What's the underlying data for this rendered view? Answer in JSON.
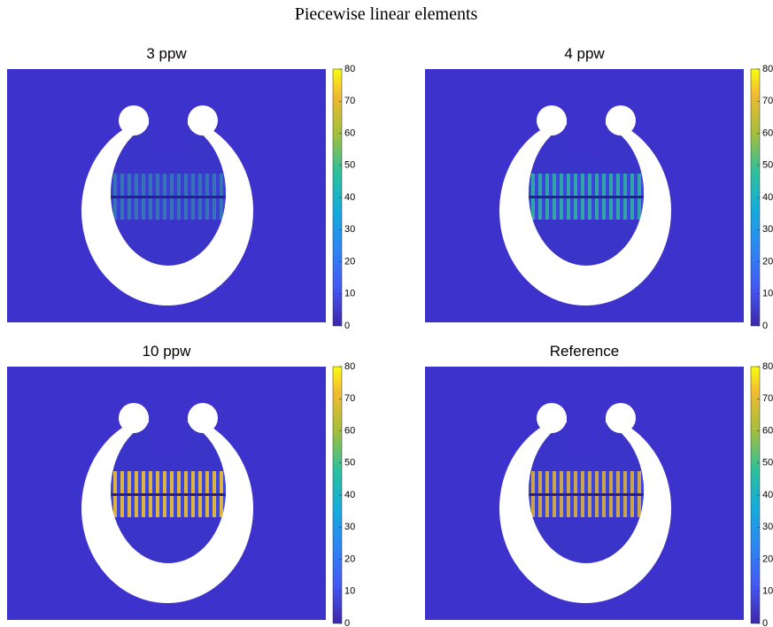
{
  "title": "Piecewise linear elements",
  "chart_data": [
    {
      "type": "heatmap",
      "title": "3 ppw",
      "clim": [
        0,
        80
      ],
      "cticks": [
        0,
        10,
        20,
        30,
        40,
        50,
        60,
        70,
        80
      ],
      "colormap": "parula"
    },
    {
      "type": "heatmap",
      "title": "4 ppw",
      "clim": [
        0,
        80
      ],
      "cticks": [
        0,
        10,
        20,
        30,
        40,
        50,
        60,
        70,
        80
      ],
      "colormap": "parula"
    },
    {
      "type": "heatmap",
      "title": "10 ppw",
      "clim": [
        0,
        80
      ],
      "cticks": [
        0,
        10,
        20,
        30,
        40,
        50,
        60,
        70,
        80
      ],
      "colormap": "parula"
    },
    {
      "type": "heatmap",
      "title": "Reference",
      "clim": [
        0,
        80
      ],
      "cticks": [
        0,
        10,
        20,
        30,
        40,
        50,
        60,
        70,
        80
      ],
      "colormap": "parula"
    }
  ]
}
